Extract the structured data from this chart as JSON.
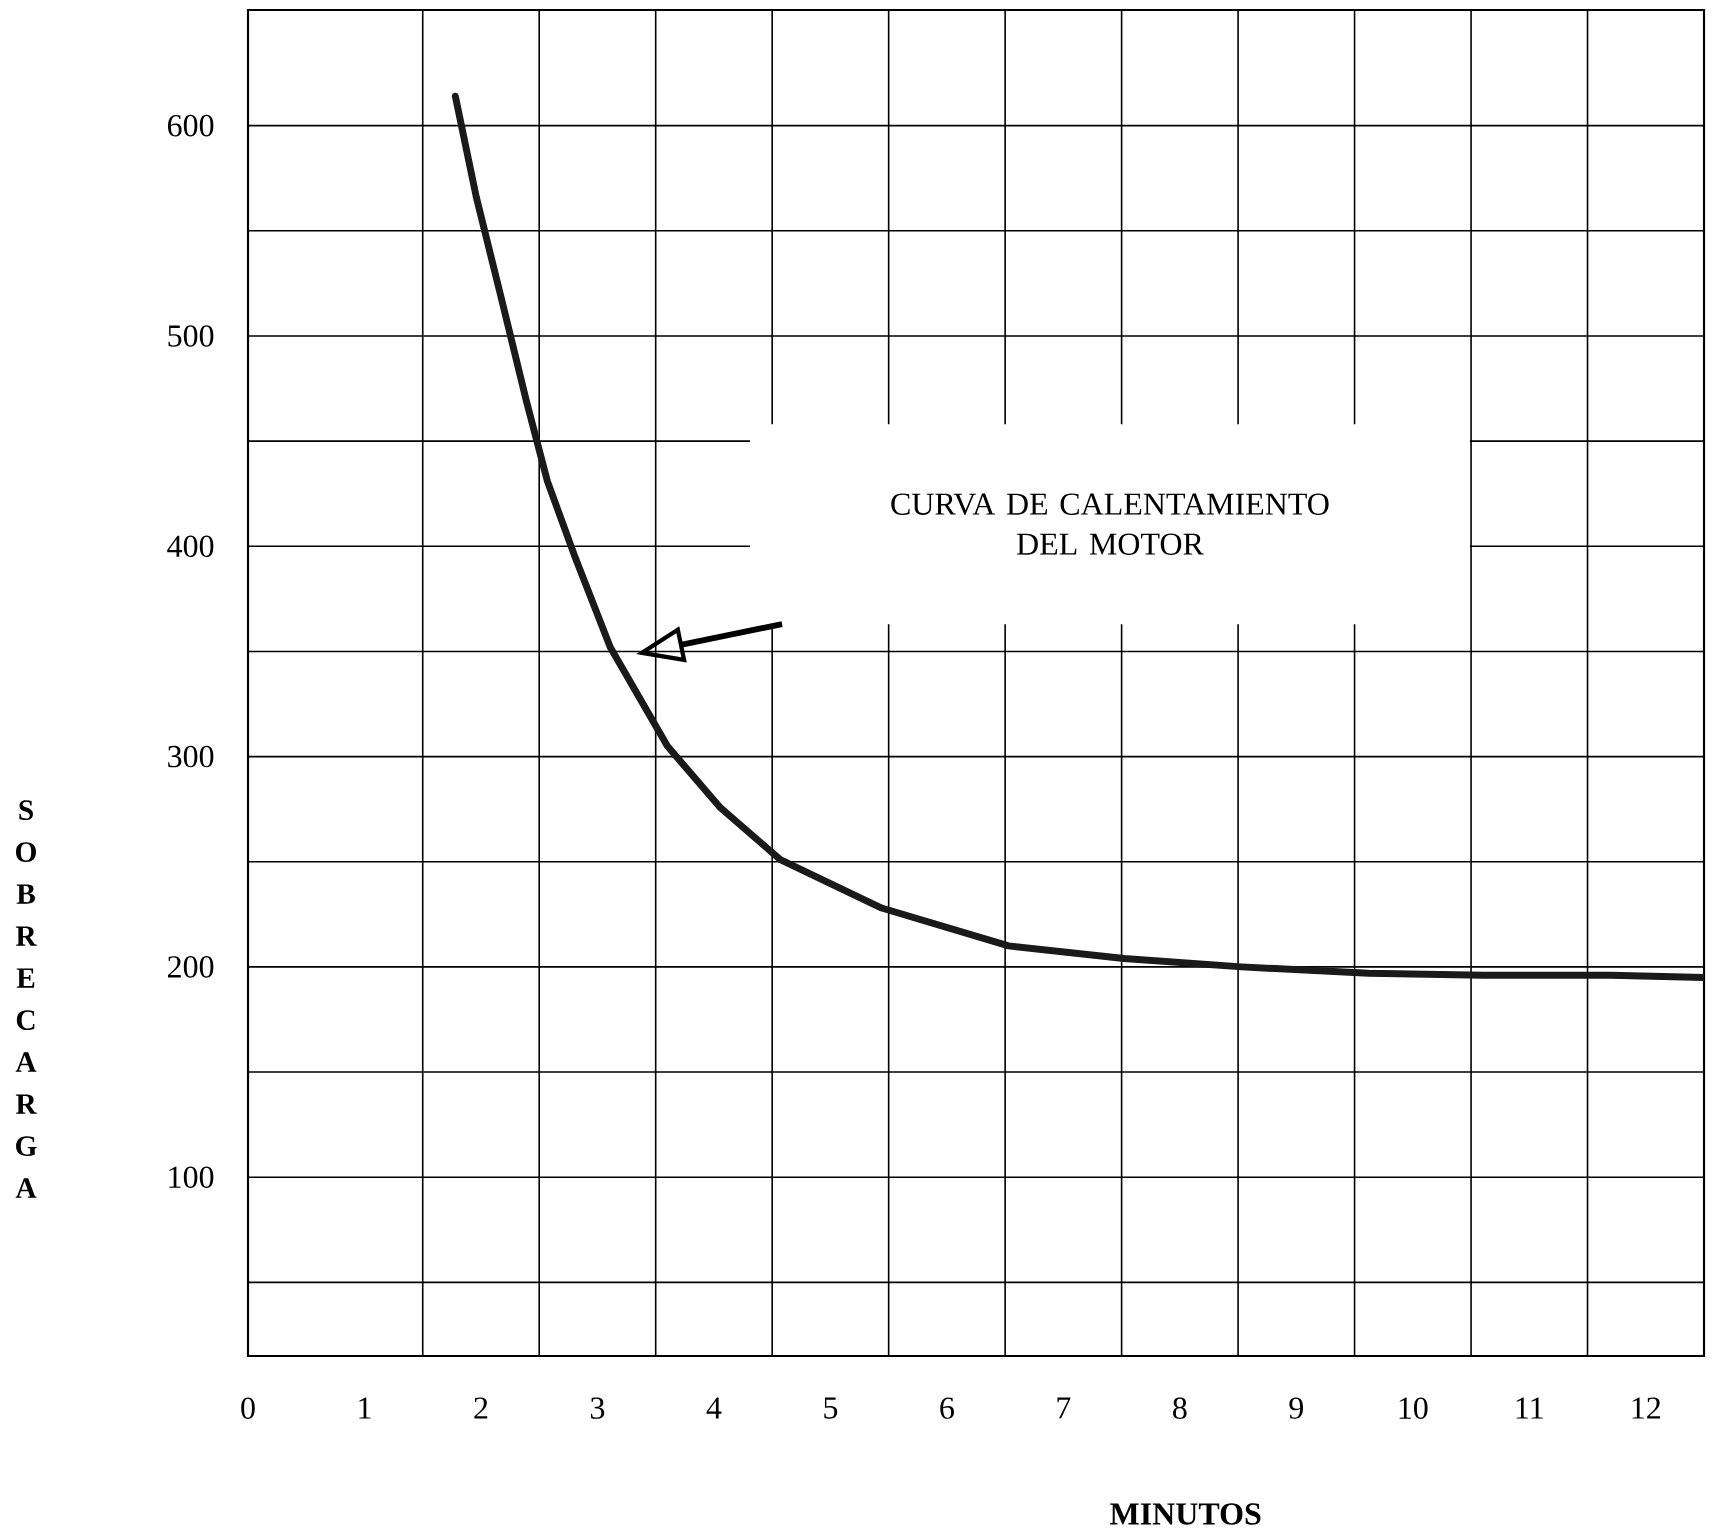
{
  "chart_data": {
    "type": "line",
    "xlabel": "MINUTOS",
    "ylabel": "SOBRECARGA",
    "color": "#1a1a1a",
    "x": [
      1.78,
      1.96,
      2.17,
      2.39,
      2.57,
      2.8,
      3.11,
      3.6,
      4.05,
      4.57,
      5.44,
      6.53,
      7.52,
      8.53,
      9.62,
      10.61,
      11.7,
      12.5
    ],
    "values": [
      614,
      566,
      519,
      469,
      431,
      396,
      352,
      305,
      276,
      251,
      228,
      210,
      204,
      200,
      197,
      196,
      196,
      195
    ],
    "xlim": [
      0,
      12.5
    ],
    "ylim": [
      15,
      655
    ],
    "xticks": [
      0,
      1,
      2,
      3,
      4,
      5,
      6,
      7,
      8,
      9,
      10,
      11,
      12,
      {
        "value": 1.5,
        "label": null
      },
      {
        "value": 2.5,
        "label": null
      },
      {
        "value": 3.5,
        "label": null
      },
      {
        "value": 4.5,
        "label": null
      },
      {
        "value": 5.5,
        "label": null
      },
      {
        "value": 6.5,
        "label": null
      },
      {
        "value": 7.5,
        "label": null
      },
      {
        "value": 8.5,
        "label": null
      },
      {
        "value": 9.5,
        "label": null
      },
      {
        "value": 10.5,
        "label": null
      },
      {
        "value": 11.5,
        "label": null
      }
    ],
    "yticks": [
      100,
      200,
      300,
      400,
      500,
      600,
      {
        "value": 50,
        "label": null
      },
      {
        "value": 150,
        "label": null
      },
      {
        "value": 250,
        "label": null
      },
      {
        "value": 350,
        "label": null
      },
      {
        "value": 450,
        "label": null
      },
      {
        "value": 550,
        "label": null
      }
    ],
    "grid": true,
    "annotations": [
      "CURVA DE CALENTAMIENTO DEL MOTOR"
    ]
  }
}
